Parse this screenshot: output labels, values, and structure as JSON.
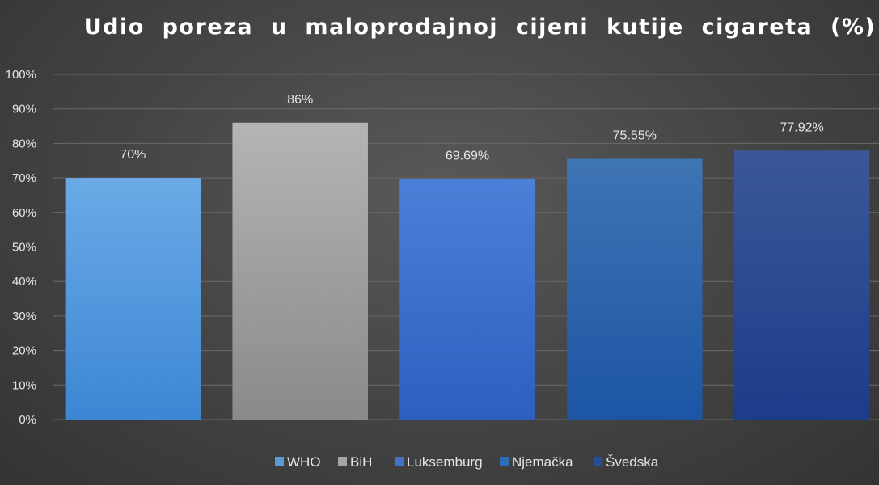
{
  "chart_data": {
    "type": "bar",
    "title": "Udio  poreza  u  maloprodajnoj  cijeni  kutije  cigareta  (%)",
    "categories": [
      "WHO",
      "BiH",
      "Luksemburg",
      "Njemačka",
      "Švedska"
    ],
    "values": [
      70,
      86,
      69.69,
      75.55,
      77.92
    ],
    "data_labels": [
      "70%",
      "86%",
      "69.69%",
      "75.55%",
      "77.92%"
    ],
    "ylim": [
      0,
      100
    ],
    "yticks": [
      0,
      10,
      20,
      30,
      40,
      50,
      60,
      70,
      80,
      90,
      100
    ],
    "ytick_labels": [
      "0%",
      "10%",
      "20%",
      "30%",
      "40%",
      "50%",
      "60%",
      "70%",
      "80%",
      "90%",
      "100%"
    ],
    "grid": true,
    "legend": "bottom",
    "colors": [
      [
        "#6aaae6",
        "#3d86d4"
      ],
      [
        "#b4b4b4",
        "#8a8a8a"
      ],
      [
        "#4a80d8",
        "#2e5fc0"
      ],
      [
        "#3f74b4",
        "#1c55a4"
      ],
      [
        "#3a5898",
        "#1c3c8a"
      ]
    ],
    "legend_colors": [
      "#5b9bd5",
      "#a5a5a5",
      "#4472c4",
      "#2e6db4",
      "#264f96"
    ]
  }
}
